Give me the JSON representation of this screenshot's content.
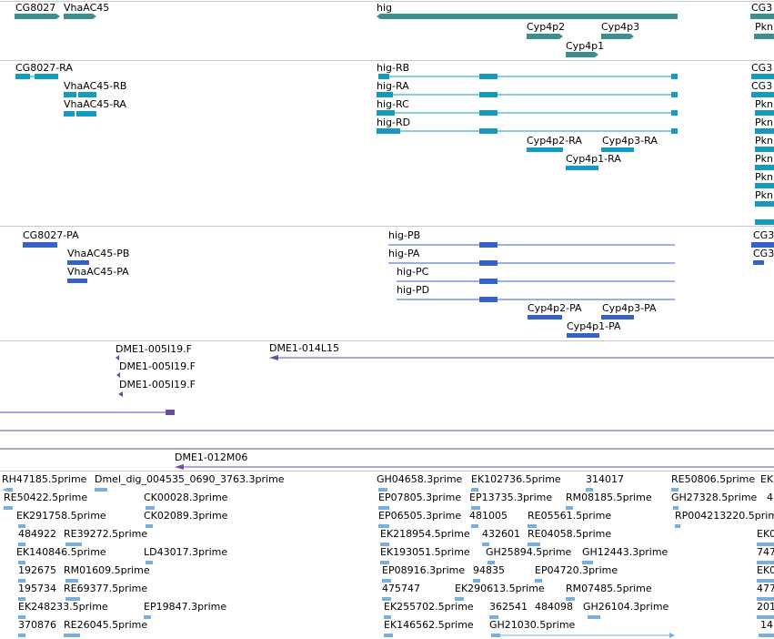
{
  "colors": {
    "gene": "#3b8f8c",
    "transcript": "#149bc0",
    "protein": "#3563c4",
    "clone": "#6e4aa3",
    "est": "#7aaedb",
    "divider": "#c8c8c8"
  },
  "tracks": {
    "genes": [
      {
        "label": "CG8027"
      },
      {
        "label": "VhaAC45"
      },
      {
        "label": "hig"
      },
      {
        "label": "CG3"
      },
      {
        "label": "Cyp4p2"
      },
      {
        "label": "Cyp4p3"
      },
      {
        "label": "Pkn"
      },
      {
        "label": "Cyp4p1"
      }
    ],
    "transcripts": [
      {
        "label": "CG8027-RA"
      },
      {
        "label": "VhaAC45-RB"
      },
      {
        "label": "VhaAC45-RA"
      },
      {
        "label": "hig-RB"
      },
      {
        "label": "hig-RA"
      },
      {
        "label": "hig-RC"
      },
      {
        "label": "hig-RD"
      },
      {
        "label": "Cyp4p2-RA"
      },
      {
        "label": "Cyp4p3-RA"
      },
      {
        "label": "Cyp4p1-RA"
      },
      {
        "label": "CG3"
      },
      {
        "label": "CG3"
      },
      {
        "label": "Pkn"
      },
      {
        "label": "Pkn"
      },
      {
        "label": "Pkn"
      },
      {
        "label": "Pkn"
      },
      {
        "label": "Pkn"
      },
      {
        "label": "Pkn"
      }
    ],
    "proteins": [
      {
        "label": "CG8027-PA"
      },
      {
        "label": "VhaAC45-PB"
      },
      {
        "label": "VhaAC45-PA"
      },
      {
        "label": "hig-PB"
      },
      {
        "label": "hig-PA"
      },
      {
        "label": "hig-PC"
      },
      {
        "label": "hig-PD"
      },
      {
        "label": "Cyp4p2-PA"
      },
      {
        "label": "Cyp4p3-PA"
      },
      {
        "label": "Cyp4p1-PA"
      },
      {
        "label": "CG3"
      },
      {
        "label": "CG3"
      }
    ],
    "clones": [
      {
        "label": "DME1-005I19.F"
      },
      {
        "label": "DME1-014L15"
      },
      {
        "label": "DME1-005I19.F"
      },
      {
        "label": "DME1-005I19.F"
      },
      {
        "label": "DME1-012M06"
      }
    ],
    "ests": [
      {
        "label": "RH47185.5prime"
      },
      {
        "label": "Dmel_dig_004535_0690_3763.3prime"
      },
      {
        "label": "GH04658.3prime"
      },
      {
        "label": "EK102736.5prime"
      },
      {
        "label": "314017"
      },
      {
        "label": "RE50806.5prime"
      },
      {
        "label": "EK"
      },
      {
        "label": "RE50422.5prime"
      },
      {
        "label": "CK00028.3prime"
      },
      {
        "label": "EP07805.3prime"
      },
      {
        "label": "EP13735.3prime"
      },
      {
        "label": "RM08185.5prime"
      },
      {
        "label": "GH27328.5prime"
      },
      {
        "label": "4"
      },
      {
        "label": "EK291758.5prime"
      },
      {
        "label": "CK02089.3prime"
      },
      {
        "label": "EP06505.3prime"
      },
      {
        "label": "481005"
      },
      {
        "label": "RE05561.5prime"
      },
      {
        "label": "RP004213220.5prime"
      },
      {
        "label": "484922"
      },
      {
        "label": "RE39272.5prime"
      },
      {
        "label": "EK218954.5prime"
      },
      {
        "label": "432601"
      },
      {
        "label": "RE04058.5prime"
      },
      {
        "label": "EK0"
      },
      {
        "label": "EK140846.5prime"
      },
      {
        "label": "LD43017.3prime"
      },
      {
        "label": "EK193051.5prime"
      },
      {
        "label": "GH25894.5prime"
      },
      {
        "label": "GH12443.3prime"
      },
      {
        "label": "747"
      },
      {
        "label": "192675"
      },
      {
        "label": "RM01609.5prime"
      },
      {
        "label": "EP08916.3prime"
      },
      {
        "label": "94835"
      },
      {
        "label": "EP04720.3prime"
      },
      {
        "label": "EK0"
      },
      {
        "label": "195734"
      },
      {
        "label": "RE69377.5prime"
      },
      {
        "label": "475747"
      },
      {
        "label": "EK290613.5prime"
      },
      {
        "label": "RM07485.5prime"
      },
      {
        "label": "477"
      },
      {
        "label": "EK248233.5prime"
      },
      {
        "label": "EP19847.3prime"
      },
      {
        "label": "EK255702.5prime"
      },
      {
        "label": "362541"
      },
      {
        "label": "484098"
      },
      {
        "label": "GH26104.3prime"
      },
      {
        "label": "201"
      },
      {
        "label": "370876"
      },
      {
        "label": "RE26045.5prime"
      },
      {
        "label": "EK146562.5prime"
      },
      {
        "label": "GH21030.5prime"
      },
      {
        "label": "14"
      }
    ]
  }
}
